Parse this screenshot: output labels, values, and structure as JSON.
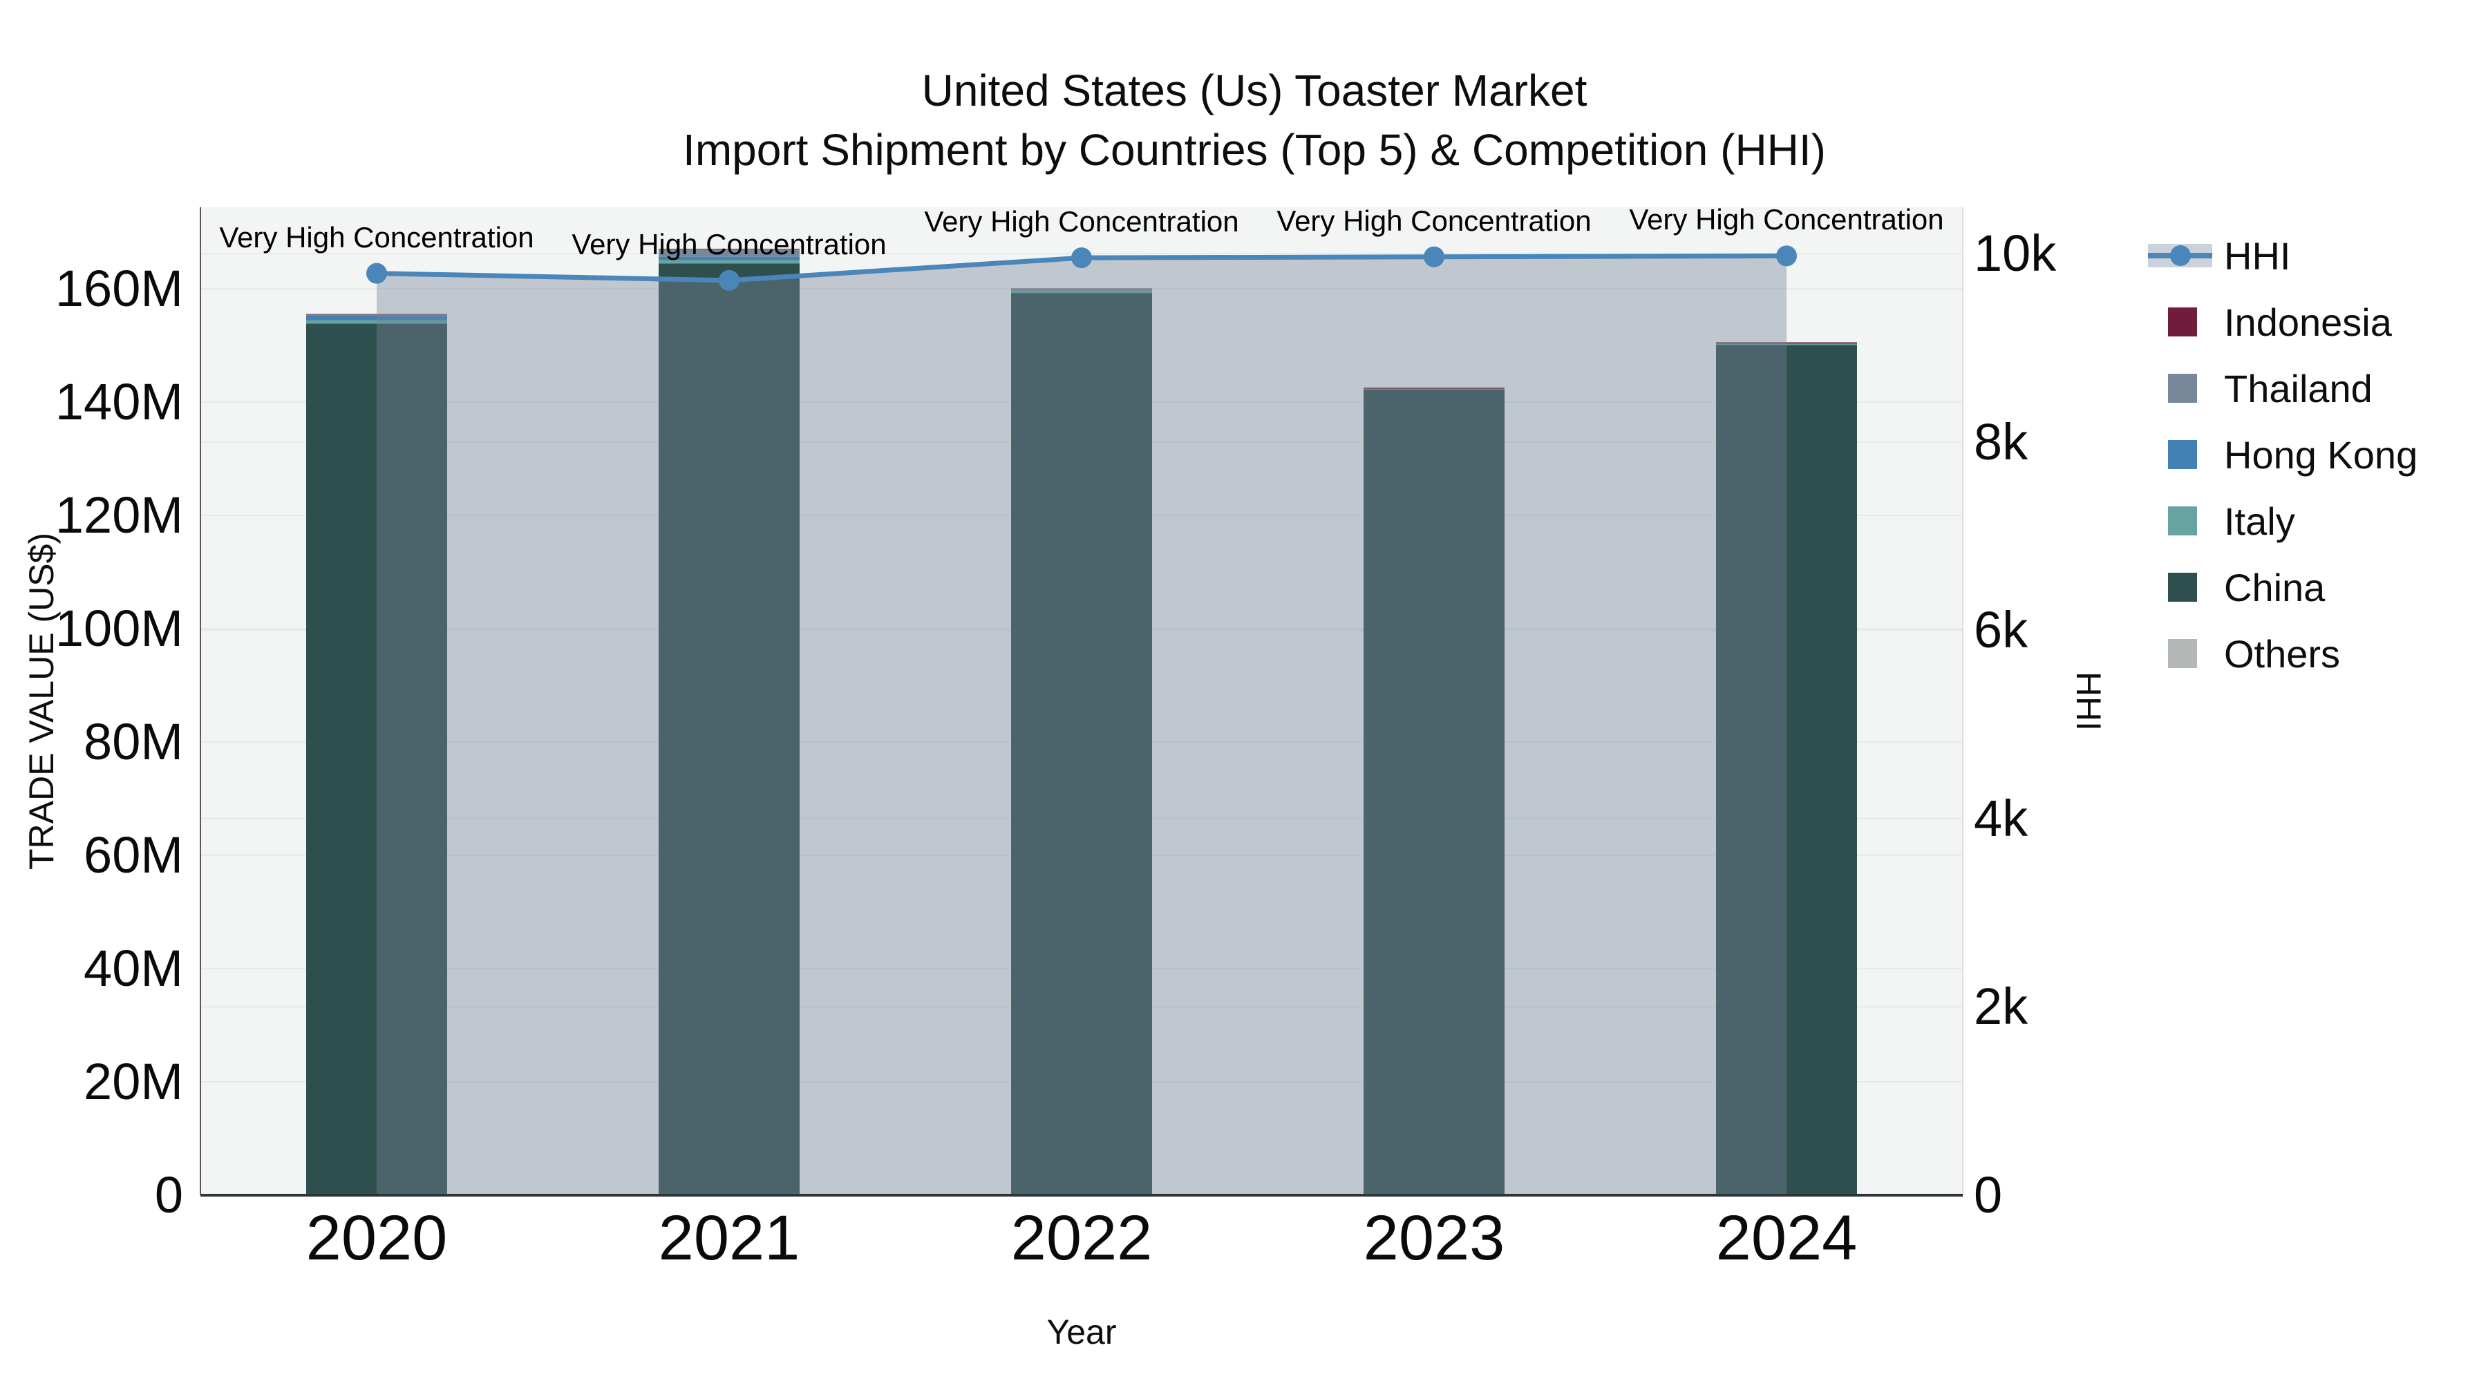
{
  "title": {
    "line1": "United States (Us) Toaster Market",
    "line2": "Import Shipment by Countries (Top 5) & Competition (HHI)"
  },
  "axes": {
    "x_title": "Year",
    "y_left_title": "TRADE VALUE (US$)",
    "y_right_title": "HHI",
    "y_left_ticks": [
      "0",
      "20M",
      "40M",
      "60M",
      "80M",
      "100M",
      "120M",
      "140M",
      "160M"
    ],
    "y_right_ticks": [
      "0",
      "2k",
      "4k",
      "6k",
      "8k",
      "10k"
    ],
    "x_ticks": [
      "2020",
      "2021",
      "2022",
      "2023",
      "2024"
    ]
  },
  "legend": [
    {
      "label": "HHI",
      "type": "line",
      "color": "#4A86BA",
      "band_color": "#CBD2DC"
    },
    {
      "label": "Indonesia",
      "type": "swatch",
      "color": "#701D3D"
    },
    {
      "label": "Thailand",
      "type": "swatch",
      "color": "#76889A"
    },
    {
      "label": "Hong Kong",
      "type": "swatch",
      "color": "#4380B4"
    },
    {
      "label": "Italy",
      "type": "swatch",
      "color": "#67A4A1"
    },
    {
      "label": "China",
      "type": "swatch",
      "color": "#2F4F4F"
    },
    {
      "label": "Others",
      "type": "swatch",
      "color": "#B3B8B7"
    }
  ],
  "chart_data": {
    "type": "bar",
    "stacked": true,
    "title": "United States (Us) Toaster Market — Import Shipment by Countries (Top 5) & Competition (HHI)",
    "xlabel": "Year",
    "ylabel_left": "TRADE VALUE (US$)",
    "ylabel_right": "HHI",
    "categories": [
      "2020",
      "2021",
      "2022",
      "2023",
      "2024"
    ],
    "unit_left": "million US$",
    "series": [
      {
        "name": "Indonesia",
        "color": "#701D3D",
        "values": [
          0.1,
          0.1,
          0.1,
          0.2,
          0.2
        ]
      },
      {
        "name": "Thailand",
        "color": "#76889A",
        "values": [
          0.15,
          1.3,
          0.05,
          0.05,
          0.05
        ]
      },
      {
        "name": "Hong Kong",
        "color": "#4380B4",
        "values": [
          0.85,
          0.6,
          0.1,
          0.05,
          0.05
        ]
      },
      {
        "name": "Italy",
        "color": "#67A4A1",
        "values": [
          0.6,
          0.6,
          0.55,
          0.05,
          0.15
        ]
      },
      {
        "name": "China",
        "color": "#2F4F4F",
        "values": [
          153.8,
          164.4,
          159.2,
          142.15,
          150.05
        ]
      },
      {
        "name": "Others",
        "color": "#B3B8B7",
        "values": [
          0.05,
          0.05,
          0.05,
          0.05,
          0.05
        ]
      }
    ],
    "stack_order_bottom_to_top": [
      "Others",
      "China",
      "Italy",
      "Hong Kong",
      "Thailand",
      "Indonesia"
    ],
    "bar_totals_musd": [
      155.55,
      167.05,
      160.05,
      142.5,
      150.55
    ],
    "line_series": {
      "name": "HHI",
      "axis": "right",
      "color": "#4A86BA",
      "fill": true,
      "fill_color": "rgba(118,132,150,0.40)",
      "values": [
        9790,
        9715,
        9955,
        9965,
        9975
      ]
    },
    "ylim_left_musd": [
      0,
      175
    ],
    "ylim_right": [
      0,
      10500
    ],
    "yticks_left_musd": [
      0,
      20,
      40,
      60,
      80,
      100,
      120,
      140,
      160
    ],
    "yticks_right": [
      0,
      2000,
      4000,
      6000,
      8000,
      10000
    ],
    "grid": true,
    "legend_position": "right",
    "annotations": [
      {
        "x": "2020",
        "text": "Very High Concentration"
      },
      {
        "x": "2021",
        "text": "Very High Concentration"
      },
      {
        "x": "2022",
        "text": "Very High Concentration"
      },
      {
        "x": "2023",
        "text": "Very High Concentration"
      },
      {
        "x": "2024",
        "text": "Very High Concentration"
      }
    ]
  },
  "style": {
    "plot_bg": "#F3F4F4",
    "grid_color": "#E7E9EA",
    "axis_line_color": "#2E3338",
    "right_edge_color": "#DCDEDF",
    "left_edge_color": "#55595C"
  }
}
